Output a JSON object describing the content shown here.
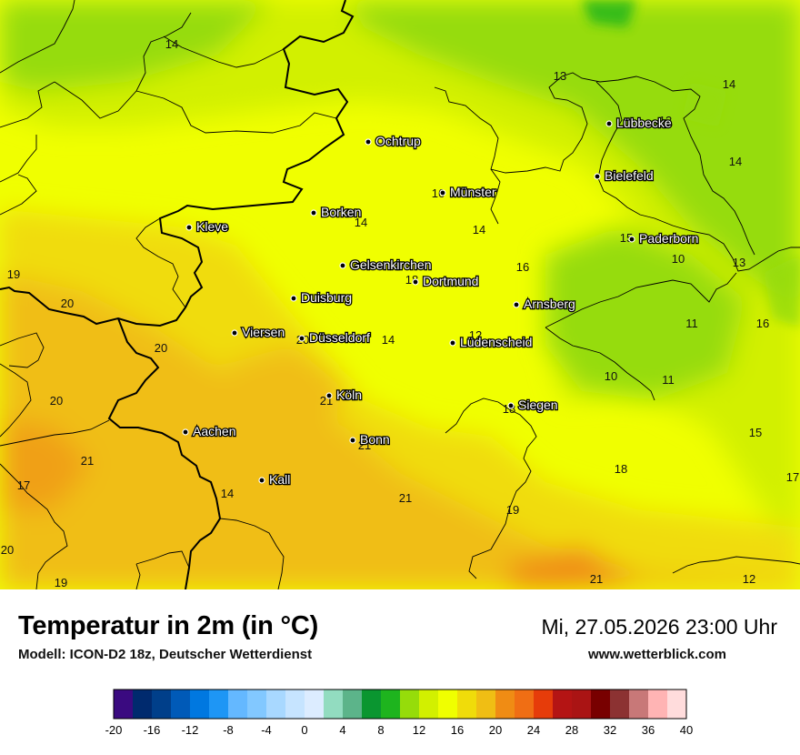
{
  "map": {
    "cities": [
      {
        "name": "Lübbecke"
      },
      {
        "name": "Ochtrup"
      },
      {
        "name": "Bielefeld"
      },
      {
        "name": "Münster"
      },
      {
        "name": "Borken"
      },
      {
        "name": "Kleve"
      },
      {
        "name": "Paderborn"
      },
      {
        "name": "Gelsenkirchen"
      },
      {
        "name": "Dortmund"
      },
      {
        "name": "Duisburg"
      },
      {
        "name": "Arnsberg"
      },
      {
        "name": "Viersen"
      },
      {
        "name": "Düsseldorf"
      },
      {
        "name": "Lüdenscheid"
      },
      {
        "name": "Köln"
      },
      {
        "name": "Siegen"
      },
      {
        "name": "Aachen"
      },
      {
        "name": "Bonn"
      },
      {
        "name": "Kall"
      }
    ],
    "values": [
      "14",
      "13",
      "14",
      "13",
      "14",
      "16",
      "14",
      "14",
      "15",
      "10",
      "13",
      "19",
      "18",
      "16",
      "20",
      "12",
      "11",
      "16",
      "20",
      "14",
      "20",
      "10",
      "11",
      "20",
      "21",
      "18",
      "15",
      "21",
      "18",
      "17",
      "17",
      "14",
      "21",
      "19",
      "20",
      "19",
      "21",
      "21",
      "12"
    ]
  },
  "header": {
    "title": "Temperatur in 2m (in °C)",
    "subtitle": "Modell: ICON-D2 18z, Deutscher Wetterdienst",
    "datetime": "Mi, 27.05.2026 23:00 Uhr",
    "website": "www.wetterblick.com"
  },
  "legend": {
    "ticks": [
      "-20",
      "-16",
      "-12",
      "-8",
      "-4",
      "0",
      "4",
      "8",
      "12",
      "16",
      "20",
      "24",
      "28",
      "32",
      "36",
      "40"
    ],
    "colors": [
      "#3a0a80",
      "#002a6e",
      "#003f8a",
      "#005ab8",
      "#0078e0",
      "#1e96f5",
      "#64b8ff",
      "#82c8ff",
      "#a8d8ff",
      "#c6e4ff",
      "#dcecff",
      "#92dcc0",
      "#5cb48a",
      "#0a9630",
      "#1eb41e",
      "#96dc0a",
      "#d2f000",
      "#f0ff00",
      "#f0dc0a",
      "#f0be14",
      "#f08c14",
      "#f06e14",
      "#e63c0a",
      "#b41414",
      "#aa1414",
      "#780000",
      "#8c3232",
      "#c87878",
      "#ffb4b4",
      "#ffdcdc"
    ]
  },
  "colors": {
    "map_green": "#96dc0a",
    "map_lightgreen": "#d2f000",
    "map_yellow": "#f0ff00",
    "map_gold": "#f0dc0a",
    "map_orange": "#f0be14"
  }
}
